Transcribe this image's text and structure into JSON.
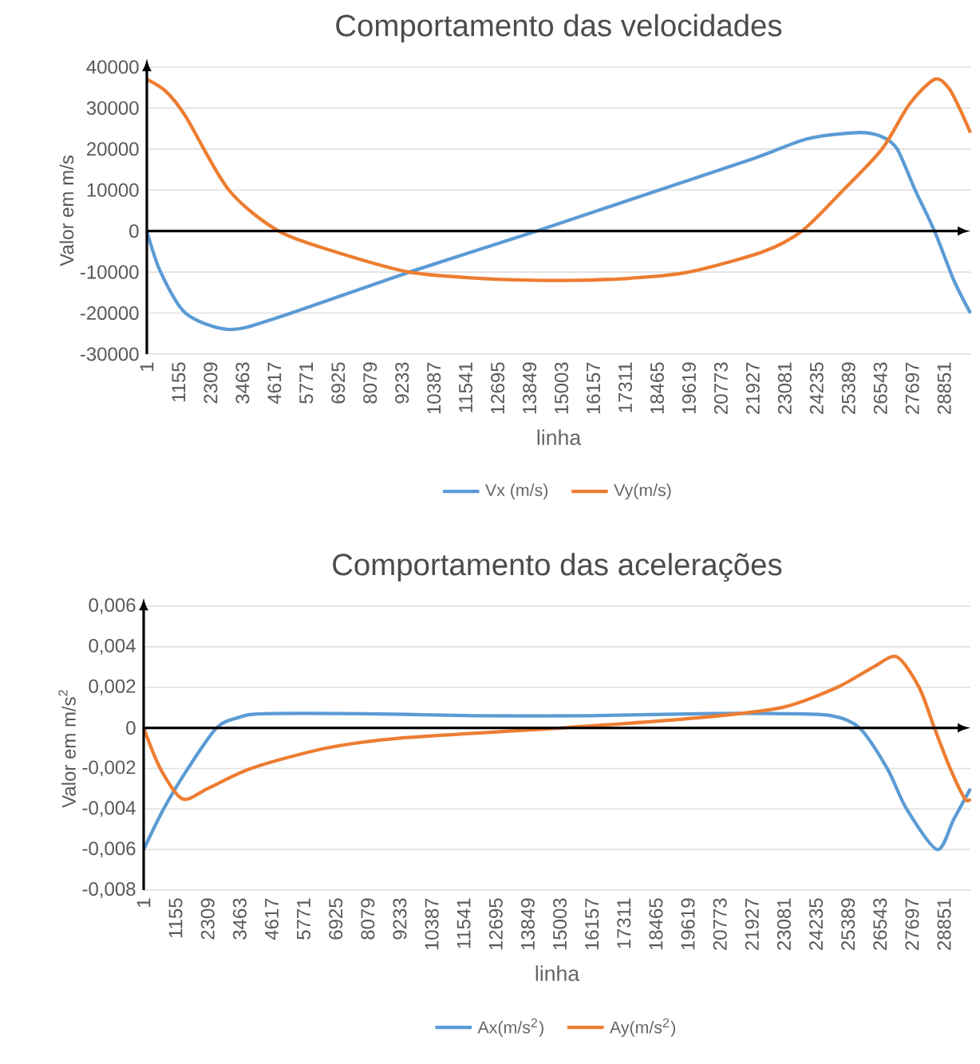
{
  "chart_data": [
    {
      "type": "line",
      "title": "Comportamento das velocidades",
      "xlabel": "linha",
      "ylabel": "Valor em m/s",
      "xlim": [
        1,
        29800
      ],
      "xticks": [
        1,
        1155,
        2309,
        3463,
        4617,
        5771,
        6925,
        8079,
        9233,
        10387,
        11541,
        12695,
        13849,
        15003,
        16157,
        17311,
        18465,
        19619,
        20773,
        21927,
        23081,
        24235,
        25389,
        26543,
        27697,
        28851
      ],
      "ylim": [
        -30000,
        40000
      ],
      "yticks": [
        -30000,
        -20000,
        -10000,
        0,
        10000,
        20000,
        30000,
        40000
      ],
      "grid": "y",
      "legend": "bottom",
      "marker": "none",
      "line_style": "solid",
      "series": [
        {
          "name": "Vx (m/s)",
          "color": "#5b9bd5",
          "x": [
            1,
            500,
            1400,
            2970,
            4770,
            9500,
            14100,
            18000,
            22000,
            23900,
            25700,
            26600,
            27150,
            27800,
            28500,
            29200,
            29800
          ],
          "values": [
            0,
            -10000,
            -20000,
            -24000,
            -21000,
            -10000,
            0,
            8800,
            17800,
            22500,
            24000,
            23000,
            20000,
            10000,
            0,
            -12000,
            -20000
          ]
        },
        {
          "name": "Vy(m/s)",
          "color": "#ed7d31",
          "x": [
            1,
            700,
            1400,
            2970,
            4770,
            6800,
            9500,
            12000,
            14000,
            15600,
            17500,
            19600,
            22300,
            23700,
            25200,
            26600,
            27600,
            28500,
            29000,
            29400,
            29800
          ],
          "values": [
            37000,
            34000,
            28000,
            10000,
            0,
            -5000,
            -10000,
            -11500,
            -12000,
            -12000,
            -11500,
            -10000,
            -5000,
            0,
            10000,
            20000,
            31000,
            37000,
            35000,
            30000,
            24000
          ]
        }
      ]
    },
    {
      "type": "line",
      "title": "Comportamento das acelerações",
      "xlabel": "linha",
      "ylabel": "Valor em m/s$^{2}$",
      "xlim": [
        1,
        29800
      ],
      "xticks": [
        1,
        1155,
        2309,
        3463,
        4617,
        5771,
        6925,
        8079,
        9233,
        10387,
        11541,
        12695,
        13849,
        15003,
        16157,
        17311,
        18465,
        19619,
        20773,
        21927,
        23081,
        24235,
        25389,
        26543,
        27697,
        28851
      ],
      "ylim": [
        -0.008,
        0.006
      ],
      "yticks": [
        {
          "value": -0.008,
          "label": "-0,008"
        },
        {
          "value": -0.006,
          "label": "-0,006"
        },
        {
          "value": -0.004,
          "label": "-0,004"
        },
        {
          "value": -0.002,
          "label": "-0,002"
        },
        0,
        {
          "value": 0.002,
          "label": "0,002"
        },
        {
          "value": 0.004,
          "label": "0,004"
        },
        {
          "value": 0.006,
          "label": "0,006"
        }
      ],
      "grid": "y",
      "legend": "bottom",
      "marker": "none",
      "line_style": "solid",
      "series": [
        {
          "name": "Ax(m/s$^{2}$)",
          "color": "#5b9bd5",
          "x": [
            1,
            720,
            1600,
            2630,
            3400,
            4300,
            8000,
            12000,
            16000,
            20000,
            23000,
            24800,
            25800,
            26800,
            27500,
            28600,
            29200,
            29800
          ],
          "values": [
            -0.006,
            -0.004,
            -0.002,
            0,
            0.0005,
            0.0007,
            0.0007,
            0.0006,
            0.0006,
            0.0007,
            0.0007,
            0.0006,
            0,
            -0.002,
            -0.004,
            -0.006,
            -0.0045,
            -0.003
          ]
        },
        {
          "name": "Ay(m/s$^{2}$)",
          "color": "#ed7d31",
          "x": [
            1,
            600,
            1400,
            2300,
            3870,
            6570,
            9270,
            15100,
            20000,
            23000,
            25000,
            26300,
            27150,
            27950,
            28500,
            29070,
            29600,
            29800
          ],
          "values": [
            0,
            -0.002,
            -0.0035,
            -0.003,
            -0.002,
            -0.001,
            -0.0005,
            0,
            0.0005,
            0.001,
            0.002,
            0.003,
            0.0035,
            0.002,
            0,
            -0.002,
            -0.0035,
            -0.0035
          ]
        }
      ]
    }
  ]
}
